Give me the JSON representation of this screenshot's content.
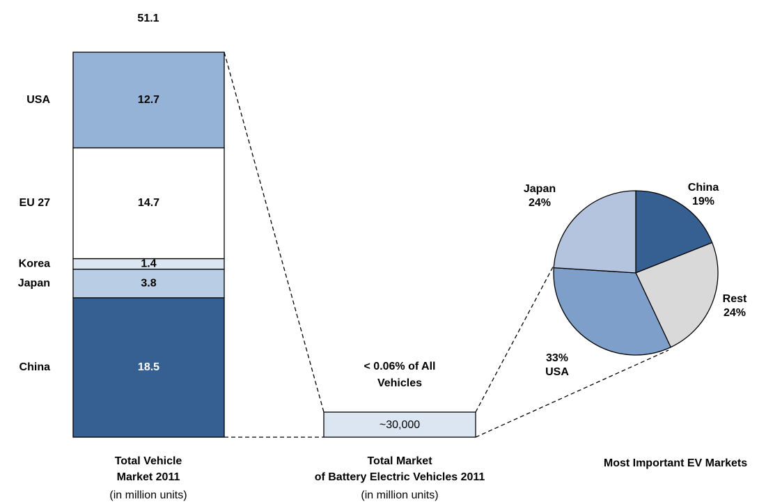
{
  "chart_data": {
    "type": "stacked_bar_pie",
    "total": 51.1,
    "stack": {
      "categories": [
        "China",
        "Japan",
        "Korea",
        "EU 27",
        "USA"
      ],
      "values": [
        18.5,
        3.8,
        1.4,
        14.7,
        12.7
      ],
      "colors": [
        "#376092",
        "#b9cde5",
        "#dce6f2",
        "#ffffff",
        "#95b3d7"
      ]
    },
    "stack_caption": [
      "Total Vehicle",
      "Market  2011"
    ],
    "stack_unit": "(in million units)",
    "bev_value_label": "~30,000",
    "bev_share_note": [
      "< 0.06% of All",
      "Vehicles"
    ],
    "bev_caption": [
      "Total Market",
      "of Battery Electric Vehicles 2011"
    ],
    "bev_unit": "(in million units)",
    "pie": {
      "categories": [
        "China",
        "Rest",
        "USA",
        "Japan"
      ],
      "values": [
        19,
        24,
        33,
        24
      ],
      "value_labels": [
        "19%",
        "24%",
        "33%",
        "24%"
      ],
      "colors": [
        "#376092",
        "#d9d9d9",
        "#7f9fcb",
        "#b4c4de"
      ]
    },
    "pie_caption": "Most Important EV Markets"
  }
}
